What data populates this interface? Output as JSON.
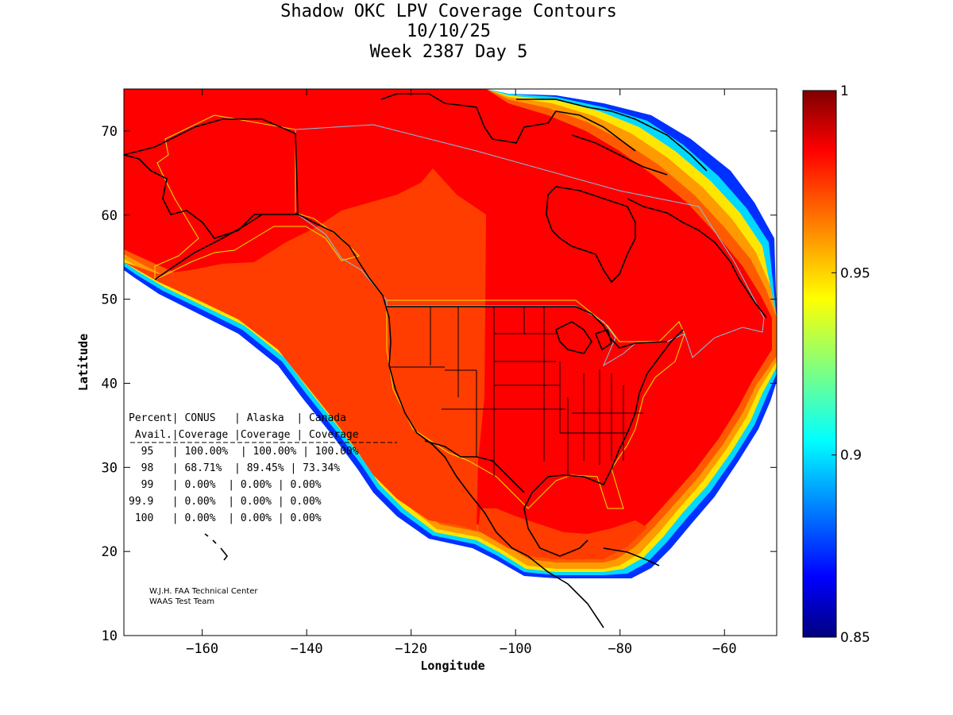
{
  "title": {
    "line1": "Shadow OKC LPV Coverage Contours",
    "line2": "10/10/25",
    "line3": "Week 2387 Day 5"
  },
  "axes": {
    "xlabel": "Longitude",
    "ylabel": "Latitude",
    "xlim": [
      -175,
      -50
    ],
    "ylim": [
      10,
      75
    ],
    "xticks": [
      -160,
      -140,
      -120,
      -100,
      -80,
      -60
    ],
    "yticks": [
      10,
      20,
      30,
      40,
      50,
      60,
      70
    ]
  },
  "colorbar": {
    "min": 0.85,
    "max": 1.0,
    "ticks": [
      "0.85",
      "0.9",
      "0.95",
      "1"
    ],
    "tick_values": [
      0.85,
      0.9,
      0.95,
      1.0
    ],
    "colormap": "jet"
  },
  "table": {
    "header1": "Percent| CONUS   | Alaska  | Canada",
    "header2": " Avail.|Coverage |Coverage | Coverage",
    "rows": [
      "  95   | 100.00%  | 100.00% | 100.00%",
      "  98   | 68.71%  | 89.45% | 73.34%",
      "  99   | 0.00%  | 0.00% | 0.00%",
      "99.9   | 0.00%  | 0.00% | 0.00%",
      " 100   | 0.00%  | 0.00% | 0.00%"
    ]
  },
  "credit": {
    "line1": "W.J.H. FAA Technical Center",
    "line2": "WAAS Test Team"
  },
  "colors": {
    "coverage_high": "#ff0000",
    "coverage_mid": "#ff3d00",
    "coverage_outer": "#ff5a00",
    "edge_orange": "#ff9a00",
    "edge_yellow": "#ffe600",
    "edge_cyan": "#00e0ff",
    "edge_blue": "#0040ff",
    "service_boundary": "#e6e600",
    "region_boundary": "#7ec8e3"
  }
}
